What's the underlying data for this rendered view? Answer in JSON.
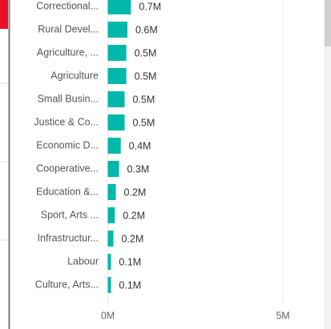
{
  "chart_data": {
    "type": "bar",
    "orientation": "horizontal",
    "categories": [
      "Correctional...",
      "Rural Devel...",
      "Agriculture, ...",
      "Agriculture",
      "Small Busin...",
      "Justice & Co...",
      "Economic D...",
      "Cooperative...",
      "Education &...",
      "Sport, Arts ...",
      "Infrastructur...",
      "Labour",
      "Culture, Arts..."
    ],
    "values": [
      660000,
      560000,
      530000,
      530000,
      480000,
      480000,
      370000,
      320000,
      230000,
      200000,
      160000,
      90000,
      90000
    ],
    "value_labels": [
      "0.7M",
      "0.6M",
      "0.5M",
      "0.5M",
      "0.5M",
      "0.5M",
      "0.4M",
      "0.3M",
      "0.2M",
      "0.2M",
      "0.2M",
      "0.1M",
      "0.1M"
    ],
    "color": "#01b8aa",
    "xlim": [
      0,
      5000000
    ],
    "xticks": [
      {
        "value": 0,
        "label": "0M"
      },
      {
        "value": 5000000,
        "label": "5M"
      }
    ],
    "grid": true
  }
}
